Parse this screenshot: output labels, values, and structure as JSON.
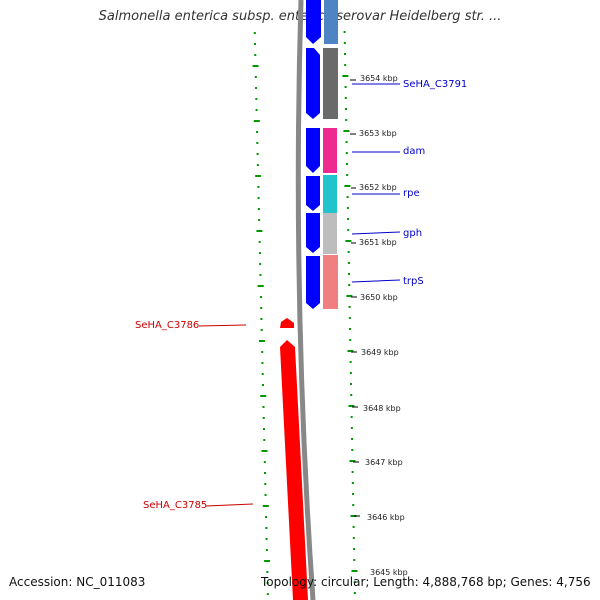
{
  "title": "Salmonella enterica subsp. enterica serovar Heidelberg str. ...",
  "footer": {
    "accession": "Accession: NC_011083",
    "topology": "Topology: circular; Length: 4,888,768 bp; Genes: 4,756"
  },
  "colors": {
    "forward": "#0000ff",
    "reverse": "#ff0000",
    "backbone": "#888888",
    "tick": "#009900",
    "label_fwd": "#0000cc",
    "label_rev": "#cc0000"
  },
  "ruler_kbp": [
    "3654 kbp",
    "3653 kbp",
    "3652 kbp",
    "3651 kbp",
    "3650 kbp",
    "3649 kbp",
    "3648 kbp",
    "3647 kbp",
    "3646 kbp",
    "3645 kbp"
  ],
  "genes": [
    {
      "name": "SeHA_C3791",
      "strand": "forward",
      "cog_color": "#6a6a6a"
    },
    {
      "name": "dam",
      "strand": "forward",
      "cog_color": "#ee2a90"
    },
    {
      "name": "rpe",
      "strand": "forward",
      "cog_color": "#22c4cc"
    },
    {
      "name": "gph",
      "strand": "forward",
      "cog_color": "#bdbdbd"
    },
    {
      "name": "trpS",
      "strand": "forward",
      "cog_color": "#f08080"
    },
    {
      "name": "SeHA_C3786",
      "strand": "reverse"
    },
    {
      "name": "SeHA_C3785",
      "strand": "reverse"
    }
  ],
  "top_gene_cog_color": "#4f84c4"
}
